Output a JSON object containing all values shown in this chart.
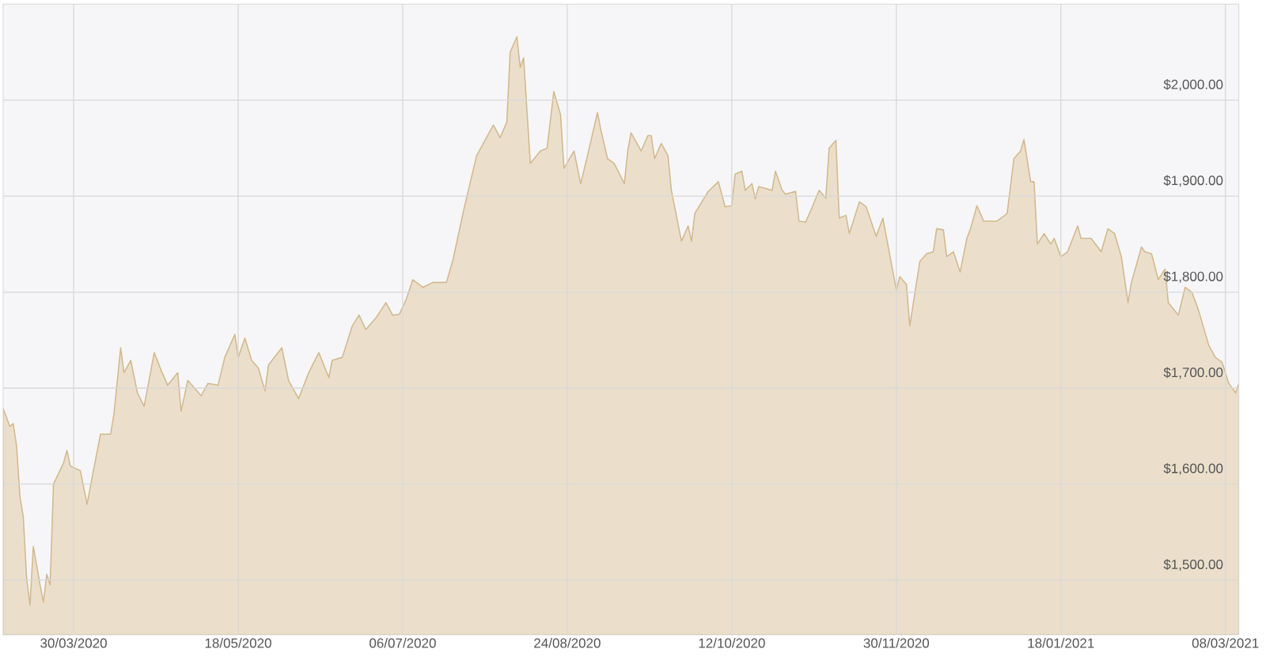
{
  "chart_data": {
    "type": "area",
    "grid": true,
    "xlim": [
      "2020-03-09",
      "2021-03-12"
    ],
    "ylim": [
      1443,
      2100
    ],
    "xticks": [
      {
        "value": "2020-03-30",
        "label": "30/03/2020"
      },
      {
        "value": "2020-05-18",
        "label": "18/05/2020"
      },
      {
        "value": "2020-07-06",
        "label": "06/07/2020"
      },
      {
        "value": "2020-08-24",
        "label": "24/08/2020"
      },
      {
        "value": "2020-10-12",
        "label": "12/10/2020"
      },
      {
        "value": "2020-11-30",
        "label": "30/11/2020"
      },
      {
        "value": "2021-01-18",
        "label": "18/01/2021"
      },
      {
        "value": "2021-03-08",
        "label": "08/03/2021"
      }
    ],
    "yticks": [
      {
        "value": 1500,
        "label": "$1,500.00"
      },
      {
        "value": 1600,
        "label": "$1,600.00"
      },
      {
        "value": 1700,
        "label": "$1,700.00"
      },
      {
        "value": 1800,
        "label": "$1,800.00"
      },
      {
        "value": 1900,
        "label": "$1,900.00"
      },
      {
        "value": 2000,
        "label": "$2,000.00"
      }
    ],
    "x": [
      "2020-03-09",
      "2020-03-11",
      "2020-03-12",
      "2020-03-13",
      "2020-03-14",
      "2020-03-15",
      "2020-03-16",
      "2020-03-17",
      "2020-03-18",
      "2020-03-20",
      "2020-03-21",
      "2020-03-22",
      "2020-03-23",
      "2020-03-24",
      "2020-03-27",
      "2020-03-28",
      "2020-03-29",
      "2020-04-01",
      "2020-04-03",
      "2020-04-05",
      "2020-04-07",
      "2020-04-10",
      "2020-04-11",
      "2020-04-13",
      "2020-04-14",
      "2020-04-16",
      "2020-04-18",
      "2020-04-20",
      "2020-04-23",
      "2020-04-25",
      "2020-04-27",
      "2020-04-30",
      "2020-05-01",
      "2020-05-03",
      "2020-05-07",
      "2020-05-09",
      "2020-05-12",
      "2020-05-14",
      "2020-05-17",
      "2020-05-18",
      "2020-05-20",
      "2020-05-22",
      "2020-05-24",
      "2020-05-26",
      "2020-05-27",
      "2020-05-31",
      "2020-06-02",
      "2020-06-05",
      "2020-06-08",
      "2020-06-11",
      "2020-06-14",
      "2020-06-15",
      "2020-06-18",
      "2020-06-21",
      "2020-06-23",
      "2020-06-25",
      "2020-06-28",
      "2020-07-01",
      "2020-07-03",
      "2020-07-05",
      "2020-07-07",
      "2020-07-09",
      "2020-07-12",
      "2020-07-15",
      "2020-07-19",
      "2020-07-21",
      "2020-07-24",
      "2020-07-28",
      "2020-07-30",
      "2020-08-02",
      "2020-08-04",
      "2020-08-06",
      "2020-08-07",
      "2020-08-09",
      "2020-08-10",
      "2020-08-11",
      "2020-08-13",
      "2020-08-16",
      "2020-08-18",
      "2020-08-20",
      "2020-08-22",
      "2020-08-23",
      "2020-08-26",
      "2020-08-28",
      "2020-08-30",
      "2020-09-02",
      "2020-09-03",
      "2020-09-05",
      "2020-09-07",
      "2020-09-10",
      "2020-09-11",
      "2020-09-12",
      "2020-09-15",
      "2020-09-17",
      "2020-09-18",
      "2020-09-19",
      "2020-09-21",
      "2020-09-23",
      "2020-09-24",
      "2020-09-27",
      "2020-09-29",
      "2020-09-30",
      "2020-10-01",
      "2020-10-05",
      "2020-10-08",
      "2020-10-10",
      "2020-10-12",
      "2020-10-13",
      "2020-10-15",
      "2020-10-16",
      "2020-10-18",
      "2020-10-19",
      "2020-10-20",
      "2020-10-24",
      "2020-10-25",
      "2020-10-27",
      "2020-10-28",
      "2020-10-31",
      "2020-11-01",
      "2020-11-03",
      "2020-11-05",
      "2020-11-07",
      "2020-11-09",
      "2020-11-10",
      "2020-11-12",
      "2020-11-13",
      "2020-11-15",
      "2020-11-16",
      "2020-11-19",
      "2020-11-21",
      "2020-11-24",
      "2020-11-26",
      "2020-11-30",
      "2020-12-01",
      "2020-12-03",
      "2020-12-04",
      "2020-12-07",
      "2020-12-09",
      "2020-12-11",
      "2020-12-12",
      "2020-12-14",
      "2020-12-15",
      "2020-12-17",
      "2020-12-19",
      "2020-12-21",
      "2020-12-22",
      "2020-12-24",
      "2020-12-26",
      "2020-12-28",
      "2020-12-30",
      "2021-01-02",
      "2021-01-04",
      "2021-01-06",
      "2021-01-07",
      "2021-01-09",
      "2021-01-10",
      "2021-01-11",
      "2021-01-13",
      "2021-01-15",
      "2021-01-16",
      "2021-01-18",
      "2021-01-20",
      "2021-01-23",
      "2021-01-24",
      "2021-01-27",
      "2021-01-30",
      "2021-02-01",
      "2021-02-03",
      "2021-02-05",
      "2021-02-07",
      "2021-02-08",
      "2021-02-11",
      "2021-02-12",
      "2021-02-14",
      "2021-02-16",
      "2021-02-18",
      "2021-02-19",
      "2021-02-22",
      "2021-02-24",
      "2021-02-26",
      "2021-02-28",
      "2021-03-03",
      "2021-03-05",
      "2021-03-07",
      "2021-03-09",
      "2021-03-11",
      "2021-03-12"
    ],
    "series": [
      {
        "color": "#d2b98e",
        "values": [
          1679,
          1660,
          1663,
          1640,
          1587,
          1566,
          1502,
          1474,
          1535,
          1495,
          1477,
          1506,
          1495,
          1600,
          1622,
          1635,
          1619,
          1614,
          1579,
          1616,
          1652,
          1652,
          1673,
          1742,
          1716,
          1729,
          1695,
          1681,
          1737,
          1719,
          1703,
          1716,
          1676,
          1708,
          1692,
          1705,
          1703,
          1732,
          1756,
          1732,
          1752,
          1729,
          1721,
          1697,
          1724,
          1742,
          1708,
          1689,
          1716,
          1737,
          1711,
          1729,
          1732,
          1765,
          1776,
          1761,
          1773,
          1789,
          1776,
          1777,
          1792,
          1813,
          1805,
          1810,
          1810,
          1834,
          1883,
          1942,
          1955,
          1974,
          1961,
          1977,
          2050,
          2066,
          2034,
          2044,
          1934,
          1947,
          1950,
          2009,
          1985,
          1929,
          1947,
          1913,
          1942,
          1987,
          1969,
          1939,
          1934,
          1913,
          1947,
          1966,
          1947,
          1963,
          1963,
          1939,
          1955,
          1942,
          1906,
          1853,
          1869,
          1853,
          1882,
          1905,
          1915,
          1889,
          1890,
          1923,
          1926,
          1906,
          1913,
          1897,
          1910,
          1906,
          1926,
          1906,
          1902,
          1905,
          1874,
          1873,
          1889,
          1906,
          1898,
          1950,
          1958,
          1877,
          1880,
          1861,
          1894,
          1889,
          1858,
          1877,
          1802,
          1816,
          1808,
          1765,
          1832,
          1840,
          1842,
          1866,
          1865,
          1837,
          1842,
          1821,
          1856,
          1865,
          1890,
          1874,
          1874,
          1874,
          1882,
          1939,
          1947,
          1959,
          1915,
          1915,
          1850,
          1861,
          1850,
          1856,
          1837,
          1842,
          1869,
          1856,
          1856,
          1842,
          1866,
          1861,
          1837,
          1789,
          1810,
          1847,
          1842,
          1840,
          1813,
          1824,
          1789,
          1776,
          1805,
          1800,
          1781,
          1745,
          1732,
          1727,
          1705,
          1695,
          1705
        ]
      }
    ]
  }
}
